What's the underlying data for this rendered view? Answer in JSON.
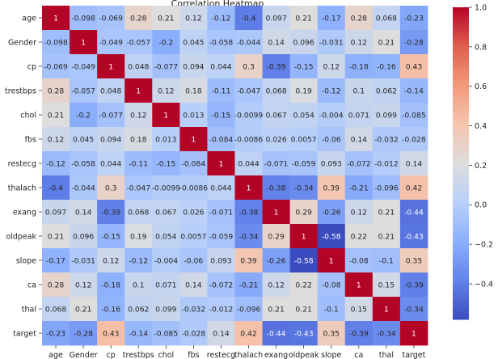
{
  "chart_data": {
    "type": "heatmap",
    "title": "Correlation Heatmap",
    "variables": [
      "age",
      "Gender",
      "cp",
      "trestbps",
      "chol",
      "fbs",
      "restecg",
      "thalach",
      "exang",
      "oldpeak",
      "slope",
      "ca",
      "thal",
      "target"
    ],
    "matrix": [
      [
        1,
        -0.098,
        -0.069,
        0.28,
        0.21,
        0.12,
        -0.12,
        -0.4,
        0.097,
        0.21,
        -0.17,
        0.28,
        0.068,
        -0.23
      ],
      [
        -0.098,
        1,
        -0.049,
        -0.057,
        -0.2,
        0.045,
        -0.058,
        -0.044,
        0.14,
        0.096,
        -0.031,
        0.12,
        0.21,
        -0.28
      ],
      [
        -0.069,
        -0.049,
        1,
        0.048,
        -0.077,
        0.094,
        0.044,
        0.3,
        -0.39,
        -0.15,
        0.12,
        -0.18,
        -0.16,
        0.43
      ],
      [
        0.28,
        -0.057,
        0.048,
        1,
        0.12,
        0.18,
        -0.11,
        -0.047,
        0.068,
        0.19,
        -0.12,
        0.1,
        0.062,
        -0.14
      ],
      [
        0.21,
        -0.2,
        -0.077,
        0.12,
        1,
        0.013,
        -0.15,
        -0.0099,
        0.067,
        0.054,
        -0.004,
        0.071,
        0.099,
        -0.085
      ],
      [
        0.12,
        0.045,
        0.094,
        0.18,
        0.013,
        1,
        -0.084,
        -0.0086,
        0.026,
        0.0057,
        -0.06,
        0.14,
        -0.032,
        -0.028
      ],
      [
        -0.12,
        -0.058,
        0.044,
        -0.11,
        -0.15,
        -0.084,
        1,
        0.044,
        -0.071,
        -0.059,
        0.093,
        -0.072,
        -0.012,
        0.14
      ],
      [
        -0.4,
        -0.044,
        0.3,
        -0.047,
        -0.0099,
        -0.0086,
        0.044,
        1,
        -0.38,
        -0.34,
        0.39,
        -0.21,
        -0.096,
        0.42
      ],
      [
        0.097,
        0.14,
        -0.39,
        0.068,
        0.067,
        0.026,
        -0.071,
        -0.38,
        1,
        0.29,
        -0.26,
        0.12,
        0.21,
        -0.44
      ],
      [
        0.21,
        0.096,
        -0.15,
        0.19,
        0.054,
        0.0057,
        -0.059,
        -0.34,
        0.29,
        1,
        -0.58,
        0.22,
        0.21,
        -0.43
      ],
      [
        -0.17,
        -0.031,
        0.12,
        -0.12,
        -0.004,
        -0.06,
        0.093,
        0.39,
        -0.26,
        -0.58,
        1,
        -0.08,
        -0.1,
        0.35
      ],
      [
        0.28,
        0.12,
        -0.18,
        0.1,
        0.071,
        0.14,
        -0.072,
        -0.21,
        0.12,
        0.22,
        -0.08,
        1,
        0.15,
        -0.39
      ],
      [
        0.068,
        0.21,
        -0.16,
        0.062,
        0.099,
        -0.032,
        -0.012,
        -0.096,
        0.21,
        0.21,
        -0.1,
        0.15,
        1,
        -0.34
      ],
      [
        -0.23,
        -0.28,
        0.43,
        -0.14,
        -0.085,
        -0.028,
        0.14,
        0.42,
        -0.44,
        -0.43,
        0.35,
        -0.39,
        -0.34,
        1
      ]
    ],
    "colormap": "coolwarm",
    "vmin": -0.58,
    "vmax": 1.0,
    "colorbar_ticks": [
      "1.0",
      "0.8",
      "0.6",
      "0.4",
      "0.2",
      "0.0",
      "−0.2",
      "−0.4"
    ],
    "colorbar_tick_values": [
      1.0,
      0.8,
      0.6,
      0.4,
      0.2,
      0.0,
      -0.2,
      -0.4
    ],
    "annot": true,
    "grid": false,
    "legend": "colorbar-right"
  }
}
